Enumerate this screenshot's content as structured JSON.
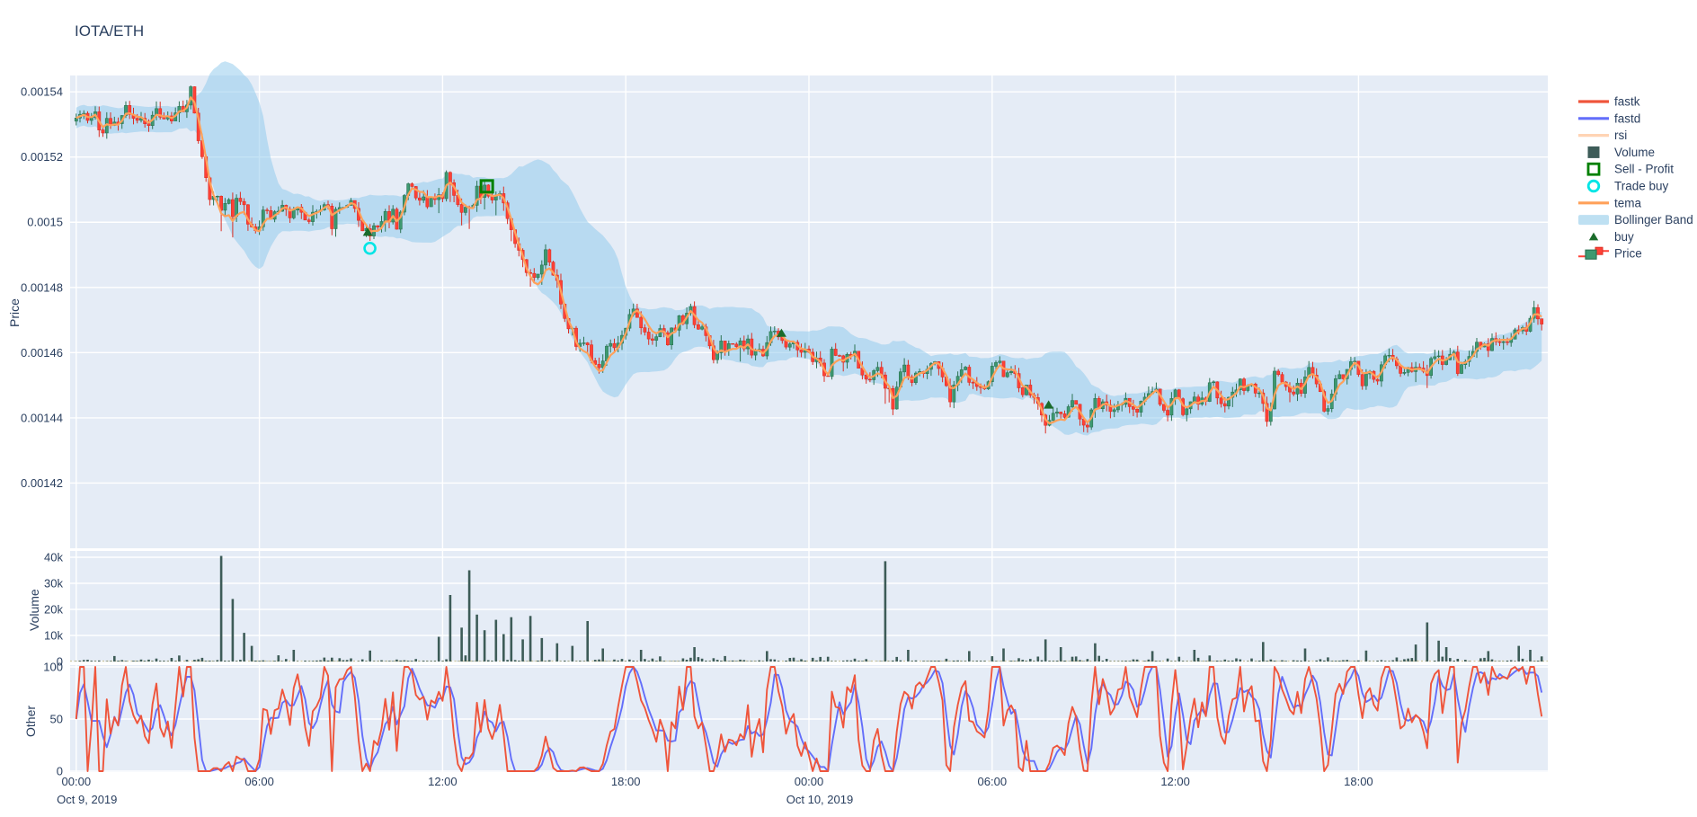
{
  "chart_data": {
    "type": "candlestick-multi-panel",
    "title": "IOTA/ETH",
    "background": "#E5ECF6",
    "grid_color": "#FFFFFF",
    "x_range_hours": [
      0,
      48
    ],
    "x_ticks": [
      {
        "t": 0,
        "label": "00:00",
        "date": "Oct 9, 2019"
      },
      {
        "t": 6,
        "label": "06:00"
      },
      {
        "t": 12,
        "label": "12:00"
      },
      {
        "t": 18,
        "label": "18:00"
      },
      {
        "t": 24,
        "label": "00:00",
        "date": "Oct 10, 2019"
      },
      {
        "t": 30,
        "label": "06:00"
      },
      {
        "t": 36,
        "label": "12:00"
      },
      {
        "t": 42,
        "label": "18:00"
      }
    ],
    "panels": {
      "price": {
        "ylabel": "Price",
        "range": [
          0.0014,
          0.001545
        ],
        "ticks": [
          {
            "v": 0.00154,
            "label": "0.00154"
          },
          {
            "v": 0.00152,
            "label": "0.00152"
          },
          {
            "v": 0.0015,
            "label": "0.0015"
          },
          {
            "v": 0.00148,
            "label": "0.00148"
          },
          {
            "v": 0.00146,
            "label": "0.00146"
          },
          {
            "v": 0.00144,
            "label": "0.00144"
          },
          {
            "v": 0.00142,
            "label": "0.00142"
          }
        ]
      },
      "volume": {
        "ylabel": "Volume",
        "range": [
          0,
          42500
        ],
        "ticks": [
          {
            "v": 0,
            "label": "0"
          },
          {
            "v": 10000,
            "label": "10k"
          },
          {
            "v": 20000,
            "label": "20k"
          },
          {
            "v": 30000,
            "label": "30k"
          },
          {
            "v": 40000,
            "label": "40k"
          }
        ]
      },
      "other": {
        "ylabel": "Other",
        "range": [
          0,
          100
        ],
        "ticks": [
          {
            "v": 0,
            "label": "0"
          },
          {
            "v": 50,
            "label": "50"
          },
          {
            "v": 100,
            "label": "100"
          }
        ]
      }
    },
    "series": {
      "fastk": {
        "color": "#EF553B",
        "type": "line"
      },
      "fastd": {
        "color": "#636EFA",
        "type": "line"
      },
      "rsi": {
        "color": "#FFA15A",
        "type": "line",
        "hidden": true
      },
      "volume": {
        "color": "#3D5C58",
        "type": "bar"
      },
      "tema": {
        "color": "#FFA15A",
        "type": "line"
      },
      "bollinger_band": {
        "fill": "#8CC8EB",
        "fill_opacity": 0.5
      },
      "price": {
        "up": "#3D9970",
        "up_stroke": "#2C7454",
        "down": "#FF4136",
        "down_stroke": "#DB2F24"
      }
    },
    "price_anchors": [
      [
        0,
        0.001531
      ],
      [
        0.7,
        0.001532
      ],
      [
        1.2,
        0.001534
      ],
      [
        1.7,
        0.001536
      ],
      [
        2.1,
        0.001534
      ],
      [
        2.6,
        0.001533
      ],
      [
        3.0,
        0.001532
      ],
      [
        3.4,
        0.001533
      ],
      [
        3.8,
        0.00153
      ],
      [
        4.1,
        0.00152
      ],
      [
        4.4,
        0.001512
      ],
      [
        4.7,
        0.001506
      ],
      [
        5.0,
        0.001504
      ],
      [
        5.4,
        0.0015
      ],
      [
        5.8,
        0.001497
      ],
      [
        6.2,
        0.0015
      ],
      [
        6.6,
        0.001503
      ],
      [
        7.0,
        0.001504
      ],
      [
        7.4,
        0.001502
      ],
      [
        7.8,
        0.001504
      ],
      [
        8.2,
        0.001505
      ],
      [
        8.6,
        0.001503
      ],
      [
        9.0,
        0.001501
      ],
      [
        9.3,
        0.001498
      ],
      [
        9.6,
        0.001495
      ],
      [
        9.9,
        0.001499
      ],
      [
        10.3,
        0.001503
      ],
      [
        10.7,
        0.001507
      ],
      [
        11.0,
        0.001511
      ],
      [
        11.3,
        0.001509
      ],
      [
        11.7,
        0.001506
      ],
      [
        12.0,
        0.001508
      ],
      [
        12.4,
        0.001506
      ],
      [
        12.8,
        0.001509
      ],
      [
        13.2,
        0.001514
      ],
      [
        13.45,
        0.001512
      ],
      [
        13.7,
        0.00151
      ],
      [
        14.0,
        0.001508
      ],
      [
        14.2,
        0.0015
      ],
      [
        14.5,
        0.00149
      ],
      [
        14.8,
        0.001485
      ],
      [
        15.0,
        0.001482
      ],
      [
        15.3,
        0.001487
      ],
      [
        15.6,
        0.001482
      ],
      [
        15.9,
        0.001476
      ],
      [
        16.2,
        0.001468
      ],
      [
        16.5,
        0.001461
      ],
      [
        16.8,
        0.001455
      ],
      [
        17.0,
        0.001453
      ],
      [
        17.3,
        0.001459
      ],
      [
        17.6,
        0.001464
      ],
      [
        18.0,
        0.001469
      ],
      [
        18.4,
        0.001473
      ],
      [
        18.8,
        0.00147
      ],
      [
        19.2,
        0.001468
      ],
      [
        19.6,
        0.00147
      ],
      [
        20.0,
        0.001472
      ],
      [
        20.4,
        0.00147
      ],
      [
        20.8,
        0.001466
      ],
      [
        21.2,
        0.001463
      ],
      [
        21.6,
        0.001462
      ],
      [
        22.0,
        0.001464
      ],
      [
        22.4,
        0.001461
      ],
      [
        22.8,
        0.001462
      ],
      [
        23.2,
        0.001465
      ],
      [
        23.6,
        0.001463
      ],
      [
        24.0,
        0.001461
      ],
      [
        24.4,
        0.001459
      ],
      [
        24.8,
        0.001457
      ],
      [
        25.2,
        0.001459
      ],
      [
        25.6,
        0.001457
      ],
      [
        26.0,
        0.001455
      ],
      [
        26.3,
        0.001451
      ],
      [
        26.45,
        0.001447
      ],
      [
        26.7,
        0.001452
      ],
      [
        27.0,
        0.001455
      ],
      [
        27.4,
        0.001453
      ],
      [
        27.8,
        0.001456
      ],
      [
        28.2,
        0.001454
      ],
      [
        28.6,
        0.001452
      ],
      [
        29.0,
        0.001454
      ],
      [
        29.4,
        0.001451
      ],
      [
        29.8,
        0.001453
      ],
      [
        30.2,
        0.001455
      ],
      [
        30.6,
        0.001452
      ],
      [
        31.0,
        0.00145
      ],
      [
        31.3,
        0.001448
      ],
      [
        31.6,
        0.001443
      ],
      [
        31.8,
        0.00144
      ],
      [
        32.1,
        0.001442
      ],
      [
        32.5,
        0.001444
      ],
      [
        32.9,
        0.001441
      ],
      [
        33.3,
        0.001442
      ],
      [
        33.7,
        0.001443
      ],
      [
        34.1,
        0.001442
      ],
      [
        34.5,
        0.001443
      ],
      [
        34.9,
        0.001442
      ],
      [
        35.3,
        0.001444
      ],
      [
        35.7,
        0.001443
      ],
      [
        36.1,
        0.001445
      ],
      [
        36.5,
        0.001444
      ],
      [
        37.0,
        0.001446
      ],
      [
        37.5,
        0.001447
      ],
      [
        38.0,
        0.001446
      ],
      [
        38.5,
        0.001448
      ],
      [
        39.0,
        0.001447
      ],
      [
        39.5,
        0.00145
      ],
      [
        40.0,
        0.001449
      ],
      [
        40.5,
        0.001451
      ],
      [
        41.0,
        0.00145
      ],
      [
        41.5,
        0.001453
      ],
      [
        42.0,
        0.001455
      ],
      [
        42.5,
        0.001454
      ],
      [
        43.0,
        0.001457
      ],
      [
        43.5,
        0.001456
      ],
      [
        44.0,
        0.001458
      ],
      [
        44.5,
        0.001457
      ],
      [
        45.0,
        0.00146
      ],
      [
        45.5,
        0.001458
      ],
      [
        46.0,
        0.001461
      ],
      [
        46.5,
        0.001463
      ],
      [
        47.0,
        0.001465
      ],
      [
        47.5,
        0.001468
      ],
      [
        48.0,
        0.001473
      ]
    ],
    "volume_spikes": [
      [
        4.8,
        40500
      ],
      [
        5.1,
        24000
      ],
      [
        5.45,
        11000
      ],
      [
        5.8,
        6000
      ],
      [
        7.1,
        4500
      ],
      [
        9.6,
        4200
      ],
      [
        11.9,
        9500
      ],
      [
        12.3,
        25500
      ],
      [
        12.6,
        13000
      ],
      [
        12.9,
        35000
      ],
      [
        13.15,
        18000
      ],
      [
        13.4,
        12000
      ],
      [
        13.7,
        16000
      ],
      [
        14.0,
        10500
      ],
      [
        14.3,
        17000
      ],
      [
        14.6,
        8500
      ],
      [
        14.9,
        17500
      ],
      [
        15.3,
        9000
      ],
      [
        15.8,
        7000
      ],
      [
        16.3,
        6000
      ],
      [
        16.8,
        15500
      ],
      [
        17.3,
        5000
      ],
      [
        18.5,
        4500
      ],
      [
        20.2,
        5500
      ],
      [
        22.6,
        4000
      ],
      [
        26.45,
        38500
      ],
      [
        27.3,
        4500
      ],
      [
        29.3,
        4000
      ],
      [
        30.4,
        5000
      ],
      [
        31.7,
        8500
      ],
      [
        32.2,
        5500
      ],
      [
        33.4,
        7000
      ],
      [
        35.2,
        4000
      ],
      [
        36.6,
        4500
      ],
      [
        38.9,
        7500
      ],
      [
        40.3,
        5000
      ],
      [
        42.2,
        4200
      ],
      [
        43.9,
        6500
      ],
      [
        44.3,
        15000
      ],
      [
        44.6,
        8000
      ],
      [
        44.9,
        5500
      ],
      [
        46.2,
        4000
      ],
      [
        47.3,
        6000
      ],
      [
        47.6,
        4500
      ]
    ],
    "markers": {
      "buy": {
        "color": "#1A6B2B",
        "points": [
          [
            9.55,
            0.001497
          ],
          [
            23.1,
            0.001466
          ],
          [
            31.85,
            0.001444
          ]
        ]
      },
      "sell_profit": {
        "color": "#008000",
        "points": [
          [
            13.45,
            0.001511
          ]
        ]
      },
      "trade_buy": {
        "color": "#00E5E5",
        "points": [
          [
            9.62,
            0.001492
          ]
        ]
      }
    },
    "legend_items": [
      {
        "label": "fastk",
        "swatch": "line",
        "color": "#EF553B"
      },
      {
        "label": "fastd",
        "swatch": "line",
        "color": "#636EFA"
      },
      {
        "label": "rsi",
        "swatch": "line",
        "color": "#FFA15A",
        "muted": true
      },
      {
        "label": "Volume",
        "swatch": "square",
        "color": "#3D5C58"
      },
      {
        "label": "Sell - Profit",
        "swatch": "open-square",
        "color": "#008000"
      },
      {
        "label": "Trade buy",
        "swatch": "open-circle",
        "color": "#00E5E5"
      },
      {
        "label": "tema",
        "swatch": "line",
        "color": "#FFA15A"
      },
      {
        "label": "Bollinger Band",
        "swatch": "band",
        "color": "#BEE0F2"
      },
      {
        "label": "buy",
        "swatch": "triangle",
        "color": "#1A6B2B"
      },
      {
        "label": "Price",
        "swatch": "candle",
        "color": "#3D9970"
      }
    ],
    "synthesis": {
      "seed": 11,
      "candle_step_h": 0.125,
      "noise": 3.2e-06,
      "persist": 0.55,
      "stoch_k": 14,
      "stoch_d": 3,
      "bb_period": 20,
      "bb_mult": 2,
      "tema_span": 10
    }
  }
}
